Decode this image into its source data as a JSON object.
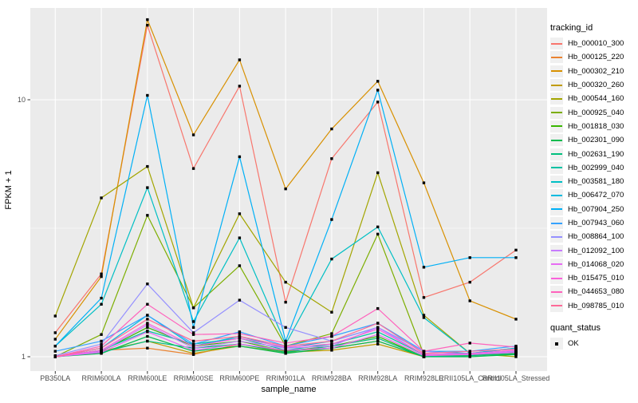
{
  "chart_data": {
    "type": "line",
    "title": "",
    "xlabel": "sample_name",
    "ylabel": "FPKM + 1",
    "y_scale": "log10",
    "y_tick_labels": [
      "1",
      "10"
    ],
    "y_ticks": [
      1,
      10
    ],
    "y_minor_breaks": [
      3.1623
    ],
    "ylim": [
      1,
      23
    ],
    "grid": true,
    "legend_position": "right",
    "legend_title": "tracking_id",
    "point_legend": {
      "title": "quant_status",
      "label": "OK",
      "marker": "black-square"
    },
    "panel_bg": "#EBEBEB",
    "gridline_color": "#FFFFFF",
    "tick_color": "#333333",
    "tick_label_color": "#4D4D4D",
    "marker_color": "#000000",
    "categories": [
      "PB350LA",
      "RRIM600LA",
      "RRIM600LE",
      "RRIM600SE",
      "RRIM600PE",
      "RRIM901LA",
      "RRIM928BA",
      "RRIM928LA",
      "RRIM928LE",
      "RRII105LA_Control",
      "RRII105LA_Stressed"
    ],
    "series": [
      {
        "name": "Hb_000010_300",
        "color": "#F8766D",
        "values": [
          1.24,
          2.1,
          19.5,
          5.4,
          11.3,
          1.63,
          5.9,
          9.8,
          1.7,
          1.95,
          2.6
        ]
      },
      {
        "name": "Hb_000125_220",
        "color": "#EA8331",
        "values": [
          1.0,
          1.06,
          1.08,
          1.02,
          1.12,
          1.05,
          1.08,
          1.15,
          1.0,
          1.02,
          1.05
        ]
      },
      {
        "name": "Hb_000302_210",
        "color": "#D89000",
        "values": [
          1.17,
          2.05,
          20.5,
          7.3,
          14.3,
          4.5,
          7.7,
          11.8,
          4.75,
          1.65,
          1.4
        ]
      },
      {
        "name": "Hb_000320_260",
        "color": "#C09B00",
        "values": [
          1.0,
          1.05,
          1.15,
          1.03,
          1.1,
          1.04,
          1.06,
          1.12,
          1.0,
          1.01,
          1.03
        ]
      },
      {
        "name": "Hb_000544_160",
        "color": "#A3A500",
        "values": [
          1.44,
          4.15,
          5.5,
          1.55,
          3.6,
          1.95,
          1.49,
          5.2,
          1.45,
          1.03,
          1.0
        ]
      },
      {
        "name": "Hb_000925_040",
        "color": "#7CAE00",
        "values": [
          1.0,
          1.22,
          3.55,
          1.55,
          2.26,
          1.1,
          1.23,
          3.0,
          1.02,
          1.02,
          1.04
        ]
      },
      {
        "name": "Hb_001818_030",
        "color": "#39B600",
        "values": [
          1.0,
          1.05,
          1.3,
          1.1,
          1.15,
          1.05,
          1.1,
          1.2,
          1.0,
          1.02,
          1.02
        ]
      },
      {
        "name": "Hb_002301_090",
        "color": "#00BB4E",
        "values": [
          1.0,
          1.03,
          1.2,
          1.05,
          1.1,
          1.03,
          1.08,
          1.15,
          1.0,
          1.0,
          1.02
        ]
      },
      {
        "name": "Hb_002631_190",
        "color": "#00BF7D",
        "values": [
          1.0,
          1.04,
          1.15,
          1.08,
          1.12,
          1.04,
          1.1,
          1.18,
          1.0,
          1.01,
          1.03
        ]
      },
      {
        "name": "Hb_002999_040",
        "color": "#00C1A3",
        "values": [
          1.0,
          1.06,
          1.26,
          1.12,
          1.18,
          1.06,
          1.12,
          1.25,
          1.02,
          1.02,
          1.05
        ]
      },
      {
        "name": "Hb_003581_180",
        "color": "#00BFC4",
        "values": [
          1.1,
          1.6,
          4.55,
          1.37,
          2.9,
          1.12,
          2.4,
          3.2,
          1.42,
          1.03,
          1.08
        ]
      },
      {
        "name": "Hb_006472_070",
        "color": "#00BAE0",
        "values": [
          1.0,
          1.08,
          1.45,
          1.1,
          1.2,
          1.08,
          1.15,
          1.3,
          1.05,
          1.03,
          1.08
        ]
      },
      {
        "name": "Hb_007904_250",
        "color": "#00B0F6",
        "values": [
          1.1,
          1.69,
          10.4,
          1.3,
          6.0,
          1.15,
          3.42,
          10.9,
          2.23,
          2.43,
          2.43
        ]
      },
      {
        "name": "Hb_007943_060",
        "color": "#35A2FF",
        "values": [
          1.05,
          1.15,
          1.45,
          1.12,
          1.25,
          1.1,
          1.2,
          1.35,
          1.05,
          1.05,
          1.1
        ]
      },
      {
        "name": "Hb_008864_100",
        "color": "#9590FF",
        "values": [
          1.01,
          1.12,
          1.92,
          1.24,
          1.66,
          1.3,
          1.15,
          1.3,
          1.05,
          1.02,
          1.05
        ]
      },
      {
        "name": "Hb_012092_100",
        "color": "#C77CFF",
        "values": [
          1.0,
          1.05,
          1.33,
          1.08,
          1.15,
          1.08,
          1.1,
          1.3,
          1.02,
          1.02,
          1.05
        ]
      },
      {
        "name": "Hb_014068_020",
        "color": "#E76BF3",
        "values": [
          1.0,
          1.04,
          1.25,
          1.06,
          1.12,
          1.06,
          1.08,
          1.22,
          1.01,
          1.02,
          1.04
        ]
      },
      {
        "name": "Hb_015475_010",
        "color": "#FA62DB",
        "values": [
          1.0,
          1.06,
          1.35,
          1.1,
          1.18,
          1.09,
          1.12,
          1.28,
          1.02,
          1.03,
          1.06
        ]
      },
      {
        "name": "Hb_044653_080",
        "color": "#FF62BC",
        "values": [
          1.0,
          1.1,
          1.6,
          1.22,
          1.23,
          1.13,
          1.2,
          1.54,
          1.05,
          1.13,
          1.09
        ]
      },
      {
        "name": "Hb_098785_010",
        "color": "#FF6A98",
        "values": [
          1.0,
          1.08,
          1.4,
          1.15,
          1.2,
          1.1,
          1.15,
          1.35,
          1.03,
          1.05,
          1.07
        ]
      }
    ]
  }
}
